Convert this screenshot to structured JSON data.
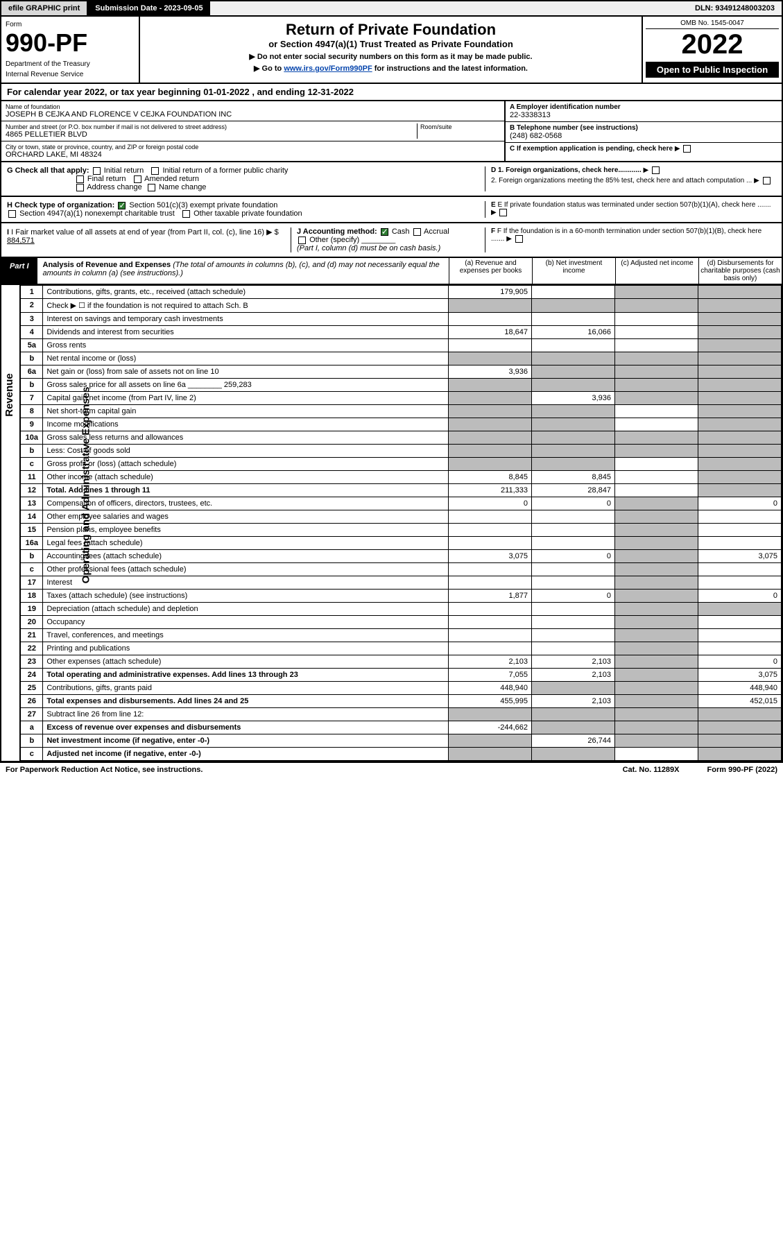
{
  "topbar": {
    "efile": "efile GRAPHIC print",
    "subdate_label": "Submission Date - 2023-09-05",
    "dln": "DLN: 93491248003203"
  },
  "header": {
    "form_word": "Form",
    "form_number": "990-PF",
    "dept": "Department of the Treasury",
    "irs": "Internal Revenue Service",
    "title": "Return of Private Foundation",
    "subtitle": "or Section 4947(a)(1) Trust Treated as Private Foundation",
    "note1": "▶ Do not enter social security numbers on this form as it may be made public.",
    "note2_pre": "▶ Go to ",
    "note2_link": "www.irs.gov/Form990PF",
    "note2_post": " for instructions and the latest information.",
    "omb": "OMB No. 1545-0047",
    "year": "2022",
    "open": "Open to Public Inspection"
  },
  "calyear": {
    "text_pre": "For calendar year 2022, or tax year beginning ",
    "begin": "01-01-2022",
    "mid": " , and ending ",
    "end": "12-31-2022"
  },
  "info": {
    "name_label": "Name of foundation",
    "name": "JOSEPH B CEJKA AND FLORENCE V CEJKA FOUNDATION INC",
    "addr_label": "Number and street (or P.O. box number if mail is not delivered to street address)",
    "addr": "4865 PELLETIER BLVD",
    "room_label": "Room/suite",
    "city_label": "City or town, state or province, country, and ZIP or foreign postal code",
    "city": "ORCHARD LAKE, MI  48324",
    "ein_label": "A Employer identification number",
    "ein": "22-3338313",
    "phone_label": "B Telephone number (see instructions)",
    "phone": "(248) 682-0568",
    "c_label": "C If exemption application is pending, check here",
    "d1": "D 1. Foreign organizations, check here............",
    "d2": "2. Foreign organizations meeting the 85% test, check here and attach computation ...",
    "e_label": "E  If private foundation status was terminated under section 507(b)(1)(A), check here .......",
    "f_label": "F  If the foundation is in a 60-month termination under section 507(b)(1)(B), check here .......",
    "g_label": "G Check all that apply:",
    "g_opts": [
      "Initial return",
      "Initial return of a former public charity",
      "Final return",
      "Amended return",
      "Address change",
      "Name change"
    ],
    "h_label": "H Check type of organization:",
    "h_opt1": "Section 501(c)(3) exempt private foundation",
    "h_opt2": "Section 4947(a)(1) nonexempt charitable trust",
    "h_opt3": "Other taxable private foundation",
    "i_label": "I Fair market value of all assets at end of year (from Part II, col. (c), line 16) ▶ $",
    "i_val": "884,571",
    "j_label": "J Accounting method:",
    "j_cash": "Cash",
    "j_accrual": "Accrual",
    "j_other": "Other (specify)",
    "j_note": "(Part I, column (d) must be on cash basis.)"
  },
  "part1": {
    "tab": "Part I",
    "title": "Analysis of Revenue and Expenses",
    "title_note": " (The total of amounts in columns (b), (c), and (d) may not necessarily equal the amounts in column (a) (see instructions).)",
    "col_a": "(a) Revenue and expenses per books",
    "col_b": "(b) Net investment income",
    "col_c": "(c) Adjusted net income",
    "col_d": "(d) Disbursements for charitable purposes (cash basis only)"
  },
  "sides": {
    "revenue": "Revenue",
    "expenses": "Operating and Administrative Expenses"
  },
  "rows": [
    {
      "n": "1",
      "d": "Contributions, gifts, grants, etc., received (attach schedule)",
      "a": "179,905",
      "b": "",
      "c": "s",
      "dcol": "s"
    },
    {
      "n": "2",
      "d": "Check ▶ ☐ if the foundation is not required to attach Sch. B",
      "a": "s",
      "b": "s",
      "c": "s",
      "dcol": "s"
    },
    {
      "n": "3",
      "d": "Interest on savings and temporary cash investments",
      "a": "",
      "b": "",
      "c": "",
      "dcol": "s"
    },
    {
      "n": "4",
      "d": "Dividends and interest from securities",
      "a": "18,647",
      "b": "16,066",
      "c": "",
      "dcol": "s"
    },
    {
      "n": "5a",
      "d": "Gross rents",
      "a": "",
      "b": "",
      "c": "",
      "dcol": "s"
    },
    {
      "n": "b",
      "d": "Net rental income or (loss)",
      "a": "s",
      "b": "s",
      "c": "s",
      "dcol": "s"
    },
    {
      "n": "6a",
      "d": "Net gain or (loss) from sale of assets not on line 10",
      "a": "3,936",
      "b": "s",
      "c": "s",
      "dcol": "s"
    },
    {
      "n": "b",
      "d": "Gross sales price for all assets on line 6a ________ 259,283",
      "a": "s",
      "b": "s",
      "c": "s",
      "dcol": "s"
    },
    {
      "n": "7",
      "d": "Capital gain net income (from Part IV, line 2)",
      "a": "s",
      "b": "3,936",
      "c": "s",
      "dcol": "s"
    },
    {
      "n": "8",
      "d": "Net short-term capital gain",
      "a": "s",
      "b": "s",
      "c": "",
      "dcol": "s"
    },
    {
      "n": "9",
      "d": "Income modifications",
      "a": "s",
      "b": "s",
      "c": "",
      "dcol": "s"
    },
    {
      "n": "10a",
      "d": "Gross sales less returns and allowances",
      "a": "s",
      "b": "s",
      "c": "s",
      "dcol": "s"
    },
    {
      "n": "b",
      "d": "Less: Cost of goods sold",
      "a": "s",
      "b": "s",
      "c": "s",
      "dcol": "s"
    },
    {
      "n": "c",
      "d": "Gross profit or (loss) (attach schedule)",
      "a": "s",
      "b": "s",
      "c": "",
      "dcol": "s"
    },
    {
      "n": "11",
      "d": "Other income (attach schedule)",
      "a": "8,845",
      "b": "8,845",
      "c": "",
      "dcol": "s"
    },
    {
      "n": "12",
      "d": "Total. Add lines 1 through 11",
      "a": "211,333",
      "b": "28,847",
      "c": "",
      "dcol": "s",
      "bold": true
    },
    {
      "n": "13",
      "d": "Compensation of officers, directors, trustees, etc.",
      "a": "0",
      "b": "0",
      "c": "s",
      "dcol": "0"
    },
    {
      "n": "14",
      "d": "Other employee salaries and wages",
      "a": "",
      "b": "",
      "c": "s",
      "dcol": ""
    },
    {
      "n": "15",
      "d": "Pension plans, employee benefits",
      "a": "",
      "b": "",
      "c": "s",
      "dcol": ""
    },
    {
      "n": "16a",
      "d": "Legal fees (attach schedule)",
      "a": "",
      "b": "",
      "c": "s",
      "dcol": ""
    },
    {
      "n": "b",
      "d": "Accounting fees (attach schedule)",
      "a": "3,075",
      "b": "0",
      "c": "s",
      "dcol": "3,075"
    },
    {
      "n": "c",
      "d": "Other professional fees (attach schedule)",
      "a": "",
      "b": "",
      "c": "s",
      "dcol": ""
    },
    {
      "n": "17",
      "d": "Interest",
      "a": "",
      "b": "",
      "c": "s",
      "dcol": ""
    },
    {
      "n": "18",
      "d": "Taxes (attach schedule) (see instructions)",
      "a": "1,877",
      "b": "0",
      "c": "s",
      "dcol": "0"
    },
    {
      "n": "19",
      "d": "Depreciation (attach schedule) and depletion",
      "a": "",
      "b": "",
      "c": "s",
      "dcol": "s"
    },
    {
      "n": "20",
      "d": "Occupancy",
      "a": "",
      "b": "",
      "c": "s",
      "dcol": ""
    },
    {
      "n": "21",
      "d": "Travel, conferences, and meetings",
      "a": "",
      "b": "",
      "c": "s",
      "dcol": ""
    },
    {
      "n": "22",
      "d": "Printing and publications",
      "a": "",
      "b": "",
      "c": "s",
      "dcol": ""
    },
    {
      "n": "23",
      "d": "Other expenses (attach schedule)",
      "a": "2,103",
      "b": "2,103",
      "c": "s",
      "dcol": "0"
    },
    {
      "n": "24",
      "d": "Total operating and administrative expenses. Add lines 13 through 23",
      "a": "7,055",
      "b": "2,103",
      "c": "s",
      "dcol": "3,075",
      "bold": true
    },
    {
      "n": "25",
      "d": "Contributions, gifts, grants paid",
      "a": "448,940",
      "b": "s",
      "c": "s",
      "dcol": "448,940"
    },
    {
      "n": "26",
      "d": "Total expenses and disbursements. Add lines 24 and 25",
      "a": "455,995",
      "b": "2,103",
      "c": "s",
      "dcol": "452,015",
      "bold": true
    },
    {
      "n": "27",
      "d": "Subtract line 26 from line 12:",
      "a": "s",
      "b": "s",
      "c": "s",
      "dcol": "s"
    },
    {
      "n": "a",
      "d": "Excess of revenue over expenses and disbursements",
      "a": "-244,662",
      "b": "s",
      "c": "s",
      "dcol": "s",
      "bold": true
    },
    {
      "n": "b",
      "d": "Net investment income (if negative, enter -0-)",
      "a": "s",
      "b": "26,744",
      "c": "s",
      "dcol": "s",
      "bold": true
    },
    {
      "n": "c",
      "d": "Adjusted net income (if negative, enter -0-)",
      "a": "s",
      "b": "s",
      "c": "",
      "dcol": "s",
      "bold": true
    }
  ],
  "footer": {
    "left": "For Paperwork Reduction Act Notice, see instructions.",
    "mid": "Cat. No. 11289X",
    "right": "Form 990-PF (2022)"
  }
}
